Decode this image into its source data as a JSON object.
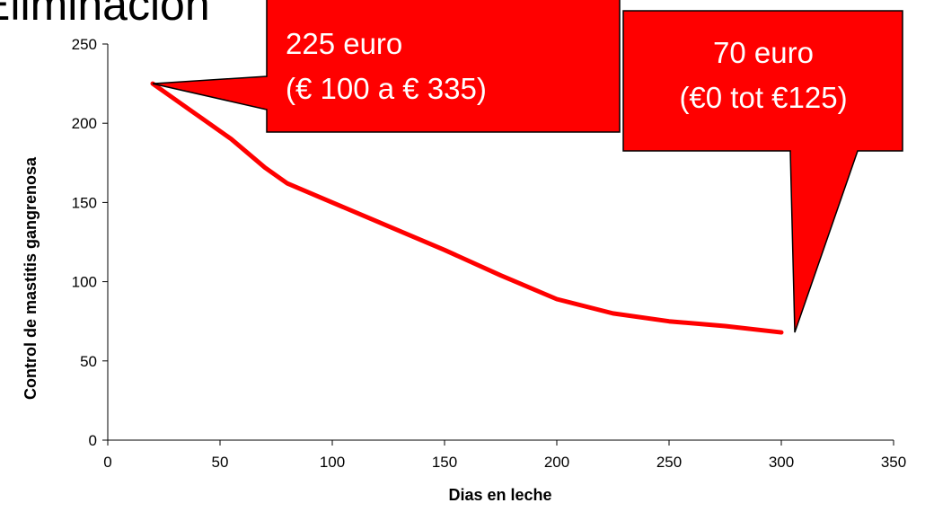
{
  "chart_data": {
    "type": "line",
    "title": "Eliminación",
    "xlabel": "Dias en leche",
    "ylabel": "Control de mastitis gangrenosa",
    "x": [
      20,
      30,
      40,
      55,
      70,
      80,
      100,
      120,
      150,
      175,
      200,
      225,
      250,
      275,
      300
    ],
    "series": [
      {
        "name": "Control de mastitis gangrenosa",
        "color": "#ff0000",
        "values": [
          225,
          215,
          205,
          190,
          172,
          162,
          150,
          138,
          120,
          104,
          89,
          80,
          75,
          72,
          68
        ]
      }
    ],
    "xlim": [
      0,
      350
    ],
    "xticks": [
      0,
      50,
      100,
      150,
      200,
      250,
      300,
      350
    ],
    "ylim": [
      0,
      250
    ],
    "yticks": [
      0,
      50,
      100,
      150,
      200,
      250
    ],
    "grid": false,
    "annotations": [
      {
        "lines": [
          "225 euro",
          "(€ 100 a € 335)"
        ],
        "color": "#ff0000"
      },
      {
        "lines": [
          "70 euro",
          "(€0 tot €125)"
        ],
        "color": "#ff0000"
      }
    ]
  }
}
